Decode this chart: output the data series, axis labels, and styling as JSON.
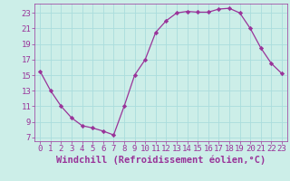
{
  "x": [
    0,
    1,
    2,
    3,
    4,
    5,
    6,
    7,
    8,
    9,
    10,
    11,
    12,
    13,
    14,
    15,
    16,
    17,
    18,
    19,
    20,
    21,
    22,
    23
  ],
  "y": [
    15.5,
    13,
    11,
    9.5,
    8.5,
    8.2,
    7.8,
    7.3,
    11,
    15,
    17,
    20.5,
    22,
    23,
    23.2,
    23.1,
    23.1,
    23.5,
    23.6,
    23,
    21,
    18.5,
    16.5,
    15.2
  ],
  "line_color": "#993399",
  "marker": "D",
  "marker_size": 2.2,
  "bg_color": "#cceee8",
  "grid_color": "#aadddd",
  "xlabel": "Windchill (Refroidissement éolien,°C)",
  "xtick_labels": [
    "0",
    "1",
    "2",
    "3",
    "4",
    "5",
    "6",
    "7",
    "8",
    "9",
    "10",
    "11",
    "12",
    "13",
    "14",
    "15",
    "16",
    "17",
    "18",
    "19",
    "20",
    "21",
    "22",
    "23"
  ],
  "ytick_values": [
    7,
    9,
    11,
    13,
    15,
    17,
    19,
    21,
    23
  ],
  "xlim": [
    -0.5,
    23.5
  ],
  "ylim": [
    6.5,
    24.2
  ],
  "tick_fontsize": 6.5,
  "xlabel_fontsize": 7.5,
  "tick_color": "#993399",
  "spine_color": "#993399"
}
